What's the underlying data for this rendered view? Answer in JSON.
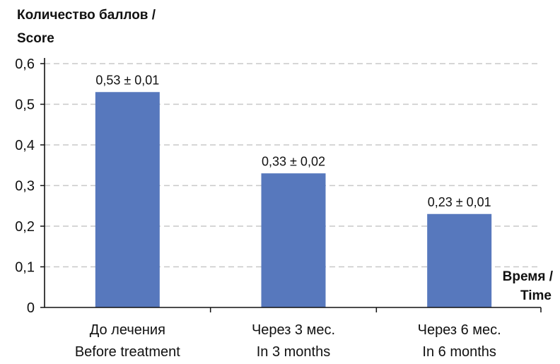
{
  "chart_data": {
    "type": "bar",
    "ylabel_lines": [
      "Количество баллов /",
      "Score"
    ],
    "xlabel_lines": [
      "Время /",
      "Time"
    ],
    "categories": [
      [
        "До лечения",
        "Before treatment"
      ],
      [
        "Через 3 мес.",
        "In 3 months"
      ],
      [
        "Через 6 мес.",
        "In 6 months"
      ]
    ],
    "values": [
      0.53,
      0.33,
      0.23
    ],
    "data_labels": [
      "0,53 ± 0,01",
      "0,33 ± 0,02",
      "0,23 ± 0,01"
    ],
    "yticks": [
      0,
      0.1,
      0.2,
      0.3,
      0.4,
      0.5,
      0.6
    ],
    "ytick_labels": [
      "0",
      "0,1",
      "0,2",
      "0,3",
      "0,4",
      "0,5",
      "0,6"
    ],
    "ylim": [
      0,
      0.6
    ],
    "grid": true,
    "bar_color": "#5778bd",
    "grid_color": "#c8c8c8"
  }
}
